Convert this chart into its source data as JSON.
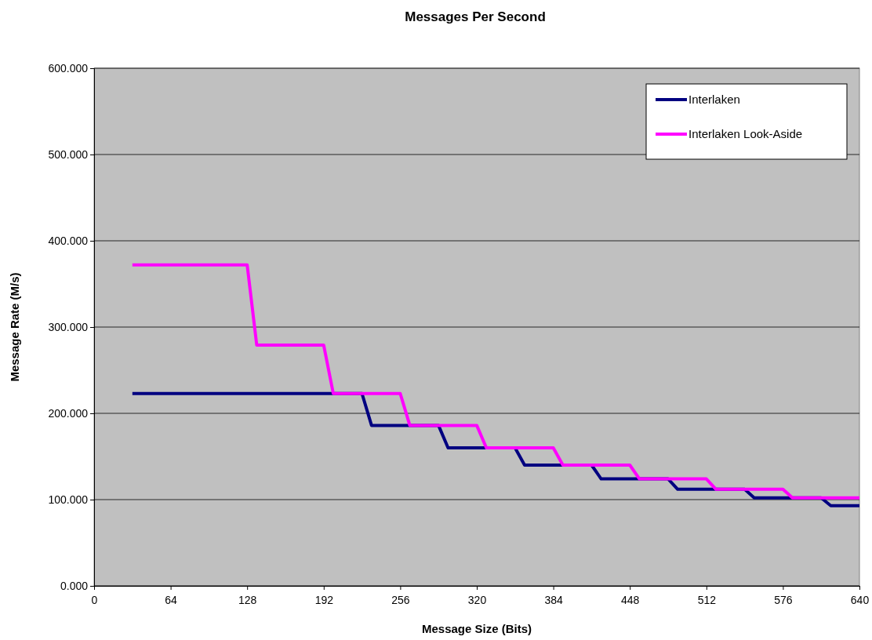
{
  "chart_data": {
    "type": "line",
    "title": "Messages Per Second",
    "xlabel": "Message Size (Bits)",
    "ylabel": "Message Rate (M/s)",
    "xlim": [
      0,
      640
    ],
    "xticks": [
      0,
      64,
      128,
      192,
      256,
      320,
      384,
      448,
      512,
      576,
      640
    ],
    "ylim": [
      0,
      600
    ],
    "yticks": [
      {
        "value": 0,
        "label": "0.000"
      },
      {
        "value": 100,
        "label": "100.000"
      },
      {
        "value": 200,
        "label": "200.000"
      },
      {
        "value": 300,
        "label": "300.000"
      },
      {
        "value": 400,
        "label": "400.000"
      },
      {
        "value": 500,
        "label": "500.000"
      },
      {
        "value": 600,
        "label": "600.000"
      }
    ],
    "grid": "y",
    "legend": "top right",
    "marker": "none",
    "line_style": "solid",
    "series": [
      {
        "name": "Interlaken",
        "color": "#000080",
        "x": [
          32,
          224,
          232,
          288,
          296,
          352,
          360,
          416,
          424,
          480,
          488,
          544,
          552,
          608,
          616,
          640
        ],
        "values": [
          223,
          223,
          186,
          186,
          160,
          160,
          140,
          140,
          124,
          124,
          112,
          112,
          102,
          102,
          93,
          93
        ]
      },
      {
        "name": "Interlaken Look-Aside",
        "color": "#ff00ff",
        "x": [
          32,
          128,
          136,
          192,
          200,
          256,
          264,
          320,
          328,
          384,
          392,
          448,
          456,
          512,
          520,
          576,
          584,
          640
        ],
        "values": [
          372,
          372,
          279,
          279,
          223,
          223,
          186,
          186,
          160,
          160,
          140,
          140,
          124,
          124,
          112,
          112,
          102,
          102
        ]
      }
    ]
  }
}
